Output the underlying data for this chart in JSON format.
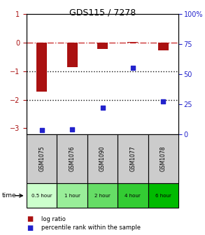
{
  "title": "GDS115 / 7278",
  "samples": [
    "GSM1075",
    "GSM1076",
    "GSM1090",
    "GSM1077",
    "GSM1078"
  ],
  "time_labels": [
    "0.5 hour",
    "1 hour",
    "2 hour",
    "4 hour",
    "6 hour"
  ],
  "time_colors": [
    "#ccffcc",
    "#99ee99",
    "#66dd66",
    "#33cc33",
    "#00bb00"
  ],
  "log_ratios": [
    -1.72,
    -0.85,
    -0.22,
    0.02,
    -0.28
  ],
  "percentiles": [
    3,
    4,
    22,
    55,
    27
  ],
  "ylim_left": [
    -3.2,
    1.0
  ],
  "ylim_right": [
    0,
    100
  ],
  "yticks_left": [
    -3,
    -2,
    -1,
    0,
    1
  ],
  "yticks_right": [
    0,
    25,
    50,
    75,
    100
  ],
  "bar_color": "#aa1111",
  "dot_color": "#2222cc",
  "dashed_line_color": "#cc3333",
  "dotted_line_color": "#111111",
  "bg_color": "#ffffff",
  "plot_bg": "#ffffff",
  "header_bg": "#cccccc",
  "bar_width": 0.35
}
